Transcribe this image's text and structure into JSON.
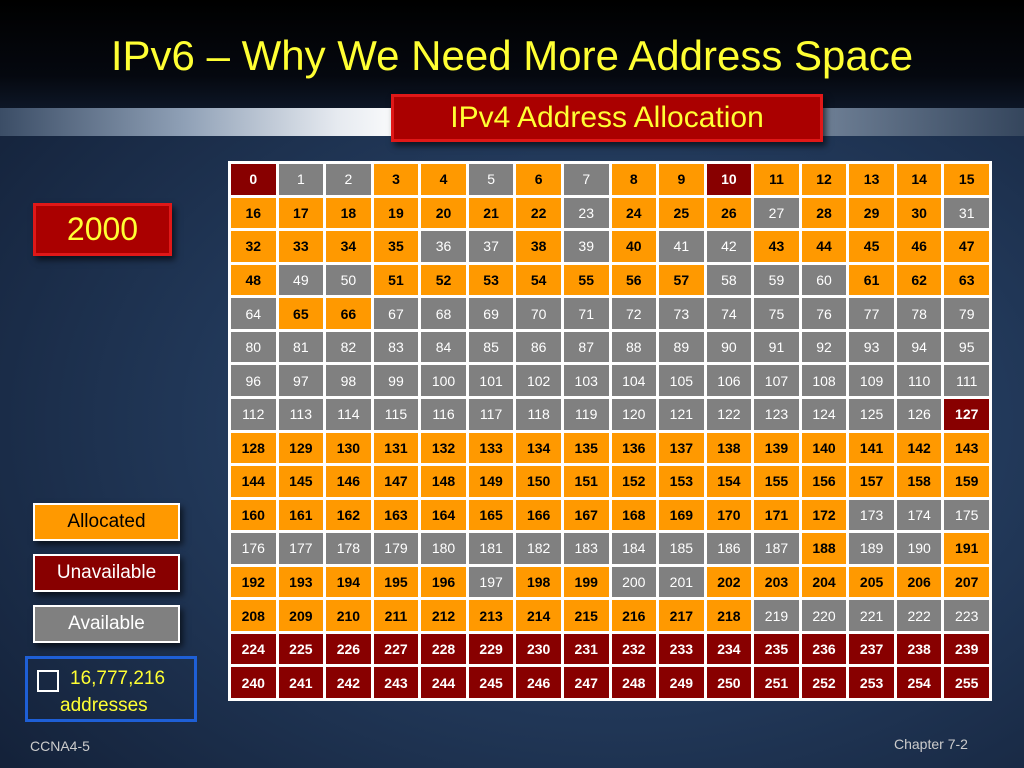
{
  "title": "IPv6 – Why We Need More Address Space",
  "subtitle": "IPv4 Address Allocation",
  "year": "2000",
  "legend": {
    "allocated": "Allocated",
    "unavailable": "Unavailable",
    "available": "Available"
  },
  "address_box": {
    "count": "16,777,216",
    "label": "addresses"
  },
  "footer": {
    "left": "CCNA4-5",
    "right": "Chapter 7-2"
  },
  "colors": {
    "allocated": "#ff9900",
    "unavailable": "#880000",
    "available": "#808080",
    "title": "#ffff33"
  },
  "blocks": {
    "allocated": [
      3,
      4,
      6,
      8,
      9,
      11,
      12,
      13,
      14,
      15,
      16,
      17,
      18,
      19,
      20,
      21,
      22,
      24,
      25,
      26,
      28,
      29,
      30,
      32,
      33,
      34,
      35,
      38,
      40,
      43,
      44,
      45,
      46,
      47,
      48,
      51,
      52,
      53,
      54,
      55,
      56,
      57,
      61,
      62,
      63,
      65,
      66,
      128,
      129,
      130,
      131,
      132,
      133,
      134,
      135,
      136,
      137,
      138,
      139,
      140,
      141,
      142,
      143,
      144,
      145,
      146,
      147,
      148,
      149,
      150,
      151,
      152,
      153,
      154,
      155,
      156,
      157,
      158,
      159,
      160,
      161,
      162,
      163,
      164,
      165,
      166,
      167,
      168,
      169,
      170,
      171,
      172,
      188,
      191,
      192,
      193,
      194,
      195,
      196,
      198,
      199,
      202,
      203,
      204,
      205,
      206,
      207,
      208,
      209,
      210,
      211,
      212,
      213,
      214,
      215,
      216,
      217,
      218
    ],
    "unavailable": [
      0,
      10,
      127,
      224,
      225,
      226,
      227,
      228,
      229,
      230,
      231,
      232,
      233,
      234,
      235,
      236,
      237,
      238,
      239,
      240,
      241,
      242,
      243,
      244,
      245,
      246,
      247,
      248,
      249,
      250,
      251,
      252,
      253,
      254,
      255
    ]
  }
}
